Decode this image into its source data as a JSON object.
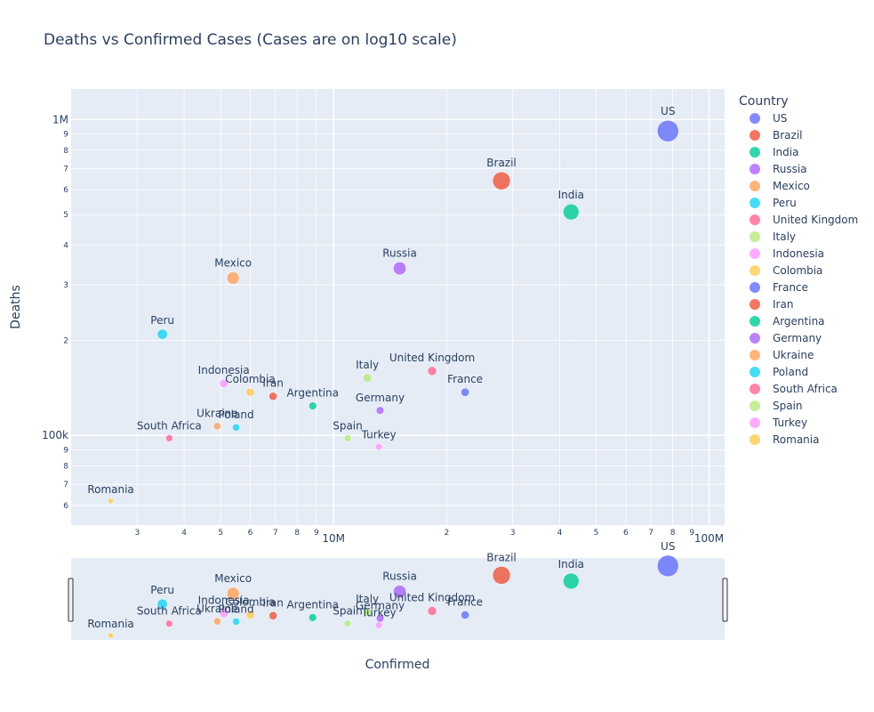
{
  "chart_data": {
    "type": "scatter",
    "title": "Deaths vs Confirmed Cases (Cases are on log10 scale)",
    "xlabel": "Confirmed",
    "ylabel": "Deaths",
    "x_scale": "log",
    "y_scale": "log",
    "xlim": [
      2000000,
      110000000
    ],
    "ylim": [
      52000,
      1250000
    ],
    "grid": true,
    "legend_title": "Country",
    "legend_position": "right",
    "rangeslider": true,
    "x_major_ticks": [
      {
        "value": 10000000,
        "label": "10M"
      },
      {
        "value": 100000000,
        "label": "100M"
      }
    ],
    "x_minor_ticks": [
      {
        "value": 3000000,
        "label": "3"
      },
      {
        "value": 4000000,
        "label": "4"
      },
      {
        "value": 5000000,
        "label": "5"
      },
      {
        "value": 6000000,
        "label": "6"
      },
      {
        "value": 7000000,
        "label": "7"
      },
      {
        "value": 8000000,
        "label": "8"
      },
      {
        "value": 9000000,
        "label": "9"
      },
      {
        "value": 20000000,
        "label": "2"
      },
      {
        "value": 30000000,
        "label": "3"
      },
      {
        "value": 40000000,
        "label": "4"
      },
      {
        "value": 50000000,
        "label": "5"
      },
      {
        "value": 60000000,
        "label": "6"
      },
      {
        "value": 70000000,
        "label": "7"
      },
      {
        "value": 80000000,
        "label": "8"
      },
      {
        "value": 90000000,
        "label": "9"
      }
    ],
    "y_major_ticks": [
      {
        "value": 100000,
        "label": "100k"
      },
      {
        "value": 1000000,
        "label": "1M"
      }
    ],
    "y_minor_ticks": [
      {
        "value": 60000,
        "label": "6"
      },
      {
        "value": 70000,
        "label": "7"
      },
      {
        "value": 80000,
        "label": "8"
      },
      {
        "value": 90000,
        "label": "9"
      },
      {
        "value": 200000,
        "label": "2"
      },
      {
        "value": 300000,
        "label": "3"
      },
      {
        "value": 400000,
        "label": "4"
      },
      {
        "value": 500000,
        "label": "5"
      },
      {
        "value": 600000,
        "label": "6"
      },
      {
        "value": 700000,
        "label": "7"
      },
      {
        "value": 800000,
        "label": "8"
      },
      {
        "value": 900000,
        "label": "9"
      }
    ],
    "series": [
      {
        "name": "US",
        "color": "#636efa",
        "x": 77700000,
        "y": 920000
      },
      {
        "name": "Brazil",
        "color": "#EF553B",
        "x": 28000000,
        "y": 640000
      },
      {
        "name": "India",
        "color": "#00cc96",
        "x": 42900000,
        "y": 510000
      },
      {
        "name": "Russia",
        "color": "#ab63fa",
        "x": 15000000,
        "y": 338000
      },
      {
        "name": "Mexico",
        "color": "#FFA15A",
        "x": 5400000,
        "y": 315000
      },
      {
        "name": "Peru",
        "color": "#19d3f3",
        "x": 3500000,
        "y": 209000
      },
      {
        "name": "United Kingdom",
        "color": "#FF6692",
        "x": 18300000,
        "y": 160000
      },
      {
        "name": "Italy",
        "color": "#B6E880",
        "x": 12300000,
        "y": 152000
      },
      {
        "name": "Indonesia",
        "color": "#FF97FF",
        "x": 5100000,
        "y": 146000
      },
      {
        "name": "Colombia",
        "color": "#FECB52",
        "x": 6000000,
        "y": 137000
      },
      {
        "name": "France",
        "color": "#636efa",
        "x": 22400000,
        "y": 137000
      },
      {
        "name": "Iran",
        "color": "#EF553B",
        "x": 6900000,
        "y": 133000
      },
      {
        "name": "Argentina",
        "color": "#00cc96",
        "x": 8800000,
        "y": 124000
      },
      {
        "name": "Germany",
        "color": "#ab63fa",
        "x": 13300000,
        "y": 120000
      },
      {
        "name": "Ukraine",
        "color": "#FFA15A",
        "x": 4900000,
        "y": 107000
      },
      {
        "name": "Poland",
        "color": "#19d3f3",
        "x": 5500000,
        "y": 106000
      },
      {
        "name": "South Africa",
        "color": "#FF6692",
        "x": 3650000,
        "y": 98000
      },
      {
        "name": "Spain",
        "color": "#B6E880",
        "x": 10900000,
        "y": 98000
      },
      {
        "name": "Turkey",
        "color": "#FF97FF",
        "x": 13200000,
        "y": 92000
      },
      {
        "name": "Romania",
        "color": "#FECB52",
        "x": 2550000,
        "y": 62000
      }
    ]
  }
}
